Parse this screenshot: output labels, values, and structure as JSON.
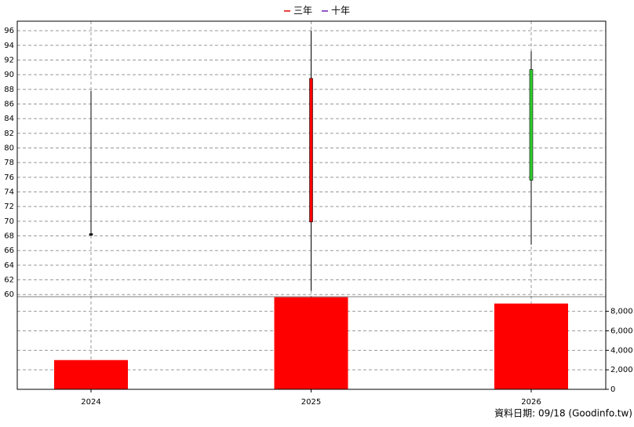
{
  "chart_data": {
    "type": "candlestick",
    "legend": [
      {
        "name": "三年",
        "color": "#e00000"
      },
      {
        "name": "十年",
        "color": "#6a1fb0"
      }
    ],
    "categories": [
      "2024",
      "2025",
      "2026"
    ],
    "open": [
      68.2,
      69.9,
      90.7
    ],
    "high": [
      87.8,
      96,
      93.2
    ],
    "low": [
      68.1,
      60.5,
      66.8
    ],
    "close": [
      68.2,
      89.5,
      75.6
    ],
    "up_color": "#ff0000",
    "down_color": "#33cc33",
    "flat_color": "#000000",
    "ylim": [
      59.7,
      97.3
    ],
    "yticks": [
      60,
      62,
      64,
      66,
      68,
      70,
      72,
      74,
      76,
      78,
      80,
      82,
      84,
      86,
      88,
      90,
      92,
      94,
      96
    ],
    "grid": true,
    "volume": {
      "values": [
        3000,
        9450,
        8800
      ],
      "color": "#ff0000",
      "ylim": [
        0,
        9500
      ],
      "yticks": [
        0,
        {
          "value": 2000,
          "label": "2,000"
        },
        {
          "value": 4000,
          "label": "4,000"
        },
        {
          "value": 6000,
          "label": "6,000"
        },
        {
          "value": 8000,
          "label": "8,000"
        }
      ]
    },
    "footnote": "資料日期: 09/18  (Goodinfo.tw)"
  }
}
